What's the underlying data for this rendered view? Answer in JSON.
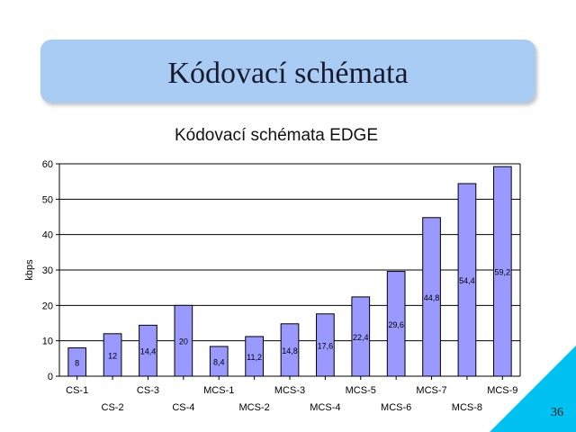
{
  "slide": {
    "title": "Kódovací schémata",
    "page_number": "36"
  },
  "colors": {
    "bar_fill": "#9999ff",
    "title_box": "#a9ccf4",
    "corner": "#00c2f2"
  },
  "chart_data": {
    "type": "bar",
    "title": "Kódovací schémata EDGE",
    "xlabel": "",
    "ylabel": "kbps",
    "ylim": [
      0,
      60
    ],
    "yticks": [
      0,
      10,
      20,
      30,
      40,
      50,
      60
    ],
    "grid": true,
    "legend": "none",
    "categories": [
      "CS-1",
      "CS-2",
      "CS-3",
      "CS-4",
      "MCS-1",
      "MCS-2",
      "MCS-3",
      "MCS-4",
      "MCS-5",
      "MCS-6",
      "MCS-7",
      "MCS-8",
      "MCS-9"
    ],
    "values": [
      8,
      12,
      14.4,
      20,
      8.4,
      11.2,
      14.8,
      17.6,
      22.4,
      29.6,
      44.8,
      54.4,
      59.2
    ],
    "data_labels": [
      "8",
      "12",
      "14,4",
      "20",
      "8,4",
      "11,2",
      "14,8",
      "17,6",
      "22,4",
      "29,6",
      "44,8",
      "54,4",
      "59,2"
    ]
  }
}
